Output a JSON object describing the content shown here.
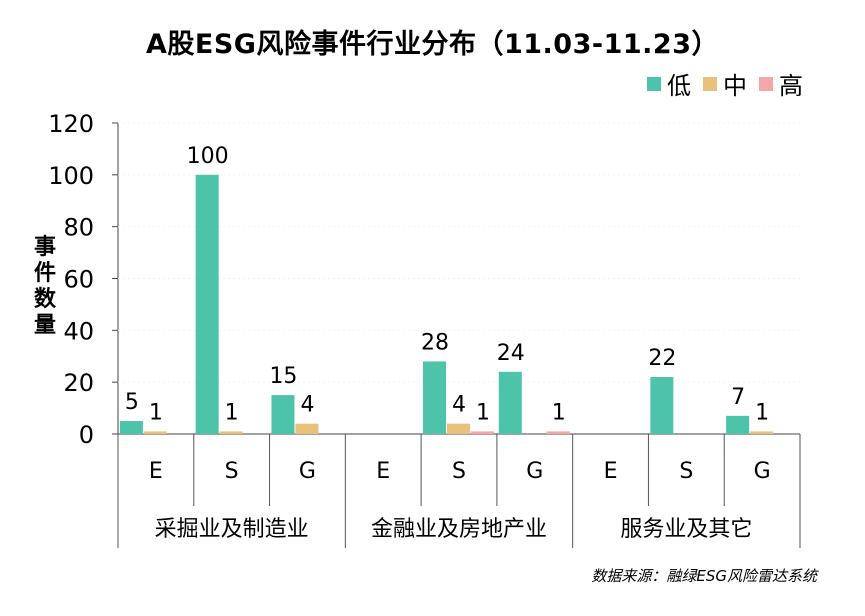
{
  "chart_data": {
    "type": "bar",
    "title": "A股ESG风险事件行业分布（11.03-11.23）",
    "ylabel": "事件数量",
    "ylim": [
      0,
      120
    ],
    "yticks": [
      "0",
      "20",
      "40",
      "60",
      "80",
      "100",
      "120"
    ],
    "grid": false,
    "legend_position": "top-right",
    "groups": [
      "采掘业及制造业",
      "金融业及房地产业",
      "服务业及其它"
    ],
    "categories": [
      "E",
      "S",
      "G",
      "E",
      "S",
      "G",
      "E",
      "S",
      "G"
    ],
    "series": [
      {
        "name": "低",
        "color": "#4dc3a9",
        "values": [
          5,
          100,
          15,
          null,
          28,
          24,
          null,
          22,
          7
        ]
      },
      {
        "name": "中",
        "color": "#e8c27d",
        "values": [
          1,
          1,
          4,
          null,
          4,
          null,
          null,
          null,
          1
        ]
      },
      {
        "name": "高",
        "color": "#f4a7a7",
        "values": [
          null,
          null,
          null,
          null,
          1,
          1,
          null,
          null,
          null
        ]
      }
    ]
  },
  "source": "数据来源：融绿ESG风险雷达系统"
}
